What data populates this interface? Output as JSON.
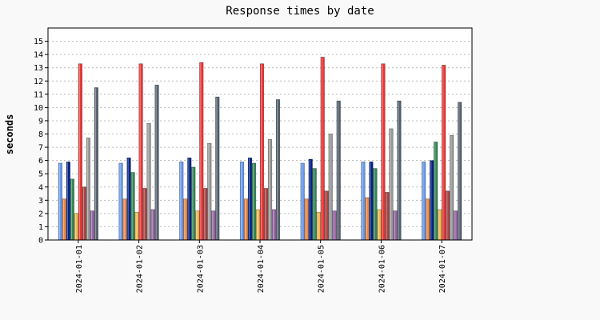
{
  "chart_data": {
    "type": "bar",
    "title": "Response times by date",
    "xlabel": "",
    "ylabel": "seconds",
    "ylim": [
      0,
      16
    ],
    "yticks": [
      0,
      1,
      2,
      3,
      4,
      5,
      6,
      7,
      8,
      9,
      10,
      11,
      12,
      13,
      14,
      15
    ],
    "grid": true,
    "legend": "none",
    "categories": [
      "2024-01-01",
      "2024-01-02",
      "2024-01-03",
      "2024-01-04",
      "2024-01-05",
      "2024-01-06",
      "2024-01-07"
    ],
    "series": [
      {
        "color": "#6699ee",
        "values": [
          5.8,
          5.8,
          5.9,
          5.9,
          5.8,
          5.9,
          5.9
        ]
      },
      {
        "color": "#ee8844",
        "values": [
          3.1,
          3.1,
          3.1,
          3.1,
          3.1,
          3.2,
          3.1
        ]
      },
      {
        "color": "#002288",
        "values": [
          5.9,
          6.2,
          6.2,
          6.2,
          6.1,
          5.9,
          6.0
        ]
      },
      {
        "color": "#338855",
        "values": [
          4.6,
          5.1,
          5.5,
          5.8,
          5.4,
          5.4,
          7.4
        ]
      },
      {
        "color": "#eebb55",
        "values": [
          2.0,
          2.1,
          2.2,
          2.3,
          2.1,
          2.3,
          2.3
        ]
      },
      {
        "color": "#ee3333",
        "values": [
          13.3,
          13.3,
          13.4,
          13.3,
          13.8,
          13.3,
          13.2
        ]
      },
      {
        "color": "#aa4444",
        "values": [
          4.0,
          3.9,
          3.9,
          3.9,
          3.7,
          3.6,
          3.7
        ]
      },
      {
        "color": "#999999",
        "values": [
          7.7,
          8.8,
          7.3,
          7.6,
          8.0,
          8.4,
          7.9
        ]
      },
      {
        "color": "#9966aa",
        "values": [
          2.2,
          2.3,
          2.2,
          2.3,
          2.2,
          2.2,
          2.2
        ]
      },
      {
        "color": "#556270",
        "values": [
          11.5,
          11.7,
          10.8,
          10.6,
          10.5,
          10.5,
          10.4
        ]
      }
    ]
  }
}
